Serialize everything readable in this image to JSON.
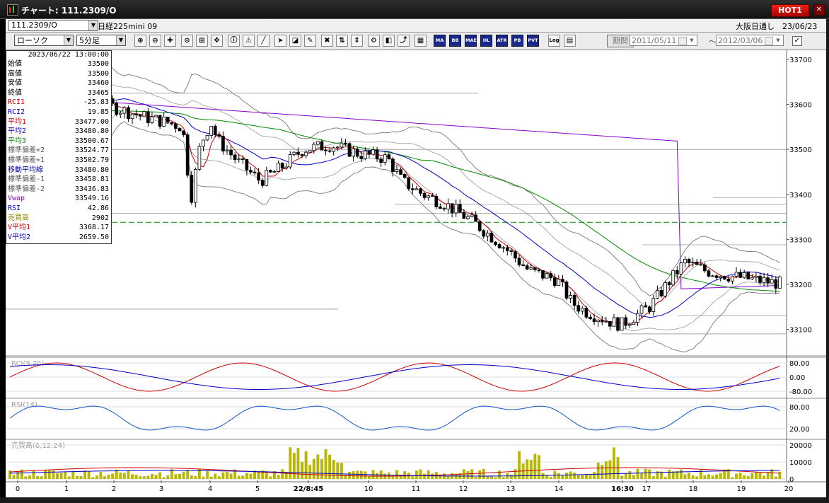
{
  "window": {
    "title": "チャート: 111.2309/O",
    "hot_label": "HOT1",
    "close_label": "✕"
  },
  "infobar": {
    "symbol": "111.2309/O",
    "market": "日経225mini 09",
    "session": "大阪日通し　23/06/23"
  },
  "toolbar": {
    "chart_type": "ローソク",
    "interval": "5分足",
    "period_label": "期間",
    "date_from": "2011/05/11",
    "date_to": "2012/03/06",
    "tilde": "～",
    "check": "✓",
    "buttons": [
      "zoom-in",
      "zoom-out",
      "crosshair",
      "measure",
      "compare",
      "move",
      "info",
      "alert",
      "trendline",
      "pointer",
      "eraser",
      "drawing-tools",
      "delete-all",
      "sort",
      "price-range",
      "config",
      "colors",
      "trend",
      "palette"
    ],
    "indicator_buttons": [
      "MA",
      "BB",
      "MAE",
      "HL",
      "ATR",
      "PB",
      "PVT"
    ],
    "extra_buttons": [
      "Log"
    ]
  },
  "data_panel": {
    "timestamp": "2023/06/22 13:00:00",
    "rows": [
      {
        "label": "始値",
        "value": "33500",
        "color": "#000000"
      },
      {
        "label": "高値",
        "value": "33500",
        "color": "#000000"
      },
      {
        "label": "安値",
        "value": "33460",
        "color": "#000000"
      },
      {
        "label": "終値",
        "value": "33465",
        "color": "#000000"
      },
      {
        "label": "RCI1",
        "value": "-25.83",
        "color": "#cc0000"
      },
      {
        "label": "RCI2",
        "value": "19.85",
        "color": "#0000cc"
      },
      {
        "label": "平均1",
        "value": "33477.00",
        "color": "#cc0000"
      },
      {
        "label": "平均2",
        "value": "33480.80",
        "color": "#0000cc"
      },
      {
        "label": "平均3",
        "value": "33500.67",
        "color": "#008800"
      },
      {
        "label": "標準偏差+2",
        "value": "33524.77",
        "color": "#555555"
      },
      {
        "label": "標準偏差+1",
        "value": "33502.79",
        "color": "#555555"
      },
      {
        "label": "移動平均線",
        "value": "33480.80",
        "color": "#0000aa"
      },
      {
        "label": "標準偏差-1",
        "value": "33458.81",
        "color": "#555555"
      },
      {
        "label": "標準偏差-2",
        "value": "33436.83",
        "color": "#555555"
      },
      {
        "label": "Vwap",
        "value": "33549.16",
        "color": "#8800cc"
      },
      {
        "label": "RSI",
        "value": "42.86",
        "color": "#0000cc"
      },
      {
        "label": "売買高",
        "value": "2902",
        "color": "#888800"
      },
      {
        "label": "V平均1",
        "value": "3368.17",
        "color": "#cc0000"
      },
      {
        "label": "V平均2",
        "value": "2659.50",
        "color": "#0000cc"
      }
    ]
  },
  "main_chart": {
    "y_ticks": [
      "33700",
      "33600",
      "33500",
      "33400",
      "33300",
      "33200",
      "33100"
    ],
    "y_range": [
      33060,
      33700
    ],
    "colors": {
      "bull": "#ffffff",
      "bear": "#000000",
      "ma1": "#cc0000",
      "ma2": "#0000cc",
      "ma3": "#008800",
      "band": "#777777",
      "vwap": "#8800cc",
      "ref": "#008800"
    },
    "ref_level": 33338
  },
  "rci_panel": {
    "label": "RCI(9,26)",
    "y_ticks": [
      "80.00",
      "0.00",
      "-80.00"
    ]
  },
  "rsi_panel": {
    "label": "RSI(14)",
    "y_ticks": [
      "80.00",
      "20.00"
    ]
  },
  "volume_panel": {
    "label": "売買高(6,12,24)",
    "y_ticks": [
      "20000",
      "10000",
      "0"
    ],
    "bar_color": "#b8b800"
  },
  "x_axis": {
    "labels": [
      "0",
      "1",
      "2",
      "3",
      "4",
      "5",
      "22/8:45",
      "10",
      "11",
      "12",
      "13",
      "14",
      "16:30",
      "17",
      "18",
      "19",
      "20"
    ],
    "highlight": [
      "22/8:45",
      "16:30"
    ]
  }
}
